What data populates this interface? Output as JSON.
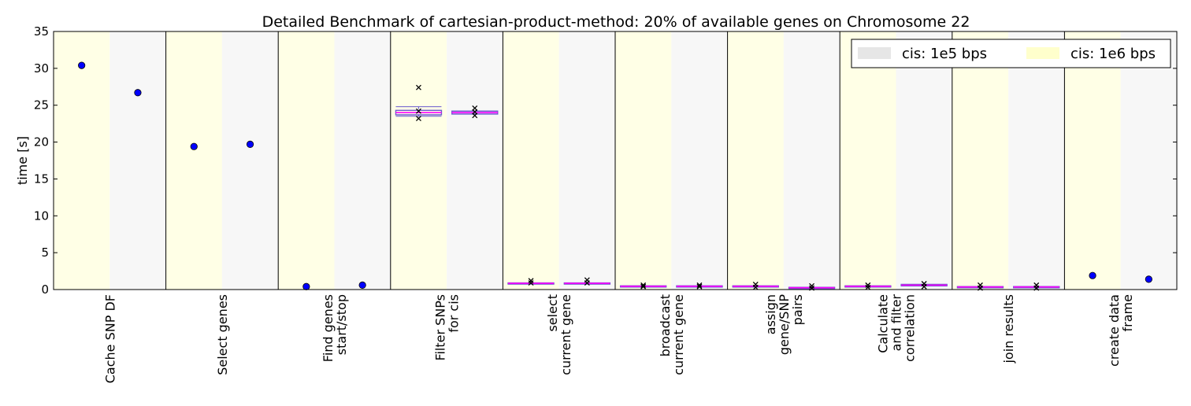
{
  "chart_data": {
    "type": "scatter",
    "title": "Detailed Benchmark of cartesian-product-method: 20% of available genes on Chromosome 22",
    "ylabel": "time [s]",
    "xlabel": "",
    "ylim": [
      0,
      35
    ],
    "yticks": [
      0,
      5,
      10,
      15,
      20,
      25,
      30,
      35
    ],
    "grid": false,
    "legend": {
      "placement": "top-right",
      "entries": [
        {
          "label": "cis: 1e5 bps",
          "color": "#e6e6e6"
        },
        {
          "label": "cis: 1e6 bps",
          "color": "#ffffcc"
        }
      ]
    },
    "colors": {
      "band_1e6": "#ffffe6",
      "band_1e5": "#f7f7f7",
      "single_point": "#0000ff",
      "box_line": "#6a5acd",
      "median": "#ff00ff",
      "outlier": "#000000"
    },
    "categories": [
      {
        "lines": [
          "Cache SNP DF"
        ],
        "kind": "point",
        "values": {
          "1e6": 30.4,
          "1e5": 26.7
        }
      },
      {
        "lines": [
          "Select genes"
        ],
        "kind": "point",
        "values": {
          "1e6": 19.4,
          "1e5": 19.7
        }
      },
      {
        "lines": [
          "Find genes",
          "start/stop"
        ],
        "kind": "point",
        "values": {
          "1e6": 0.4,
          "1e5": 0.6
        }
      },
      {
        "lines": [
          "Filter SNPs",
          "for cis"
        ],
        "kind": "box",
        "boxes": {
          "1e6": {
            "whislo": 23.5,
            "q1": 23.7,
            "med": 24.0,
            "q3": 24.3,
            "whishi": 24.8,
            "fliers": [
              27.4,
              24.2,
              23.2
            ]
          },
          "1e5": {
            "whislo": 23.8,
            "q1": 23.8,
            "med": 24.0,
            "q3": 24.2,
            "whishi": 24.2,
            "fliers": [
              24.6,
              24.1,
              23.6
            ]
          }
        }
      },
      {
        "lines": [
          "select",
          "current gene"
        ],
        "kind": "box",
        "boxes": {
          "1e6": {
            "whislo": 0.8,
            "q1": 0.8,
            "med": 0.85,
            "q3": 0.9,
            "whishi": 0.9,
            "fliers": [
              1.2,
              0.9
            ]
          },
          "1e5": {
            "whislo": 0.8,
            "q1": 0.8,
            "med": 0.85,
            "q3": 0.9,
            "whishi": 0.9,
            "fliers": [
              1.3,
              0.9
            ]
          }
        }
      },
      {
        "lines": [
          "broadcast",
          "current gene"
        ],
        "kind": "box",
        "boxes": {
          "1e6": {
            "whislo": 0.4,
            "q1": 0.4,
            "med": 0.45,
            "q3": 0.5,
            "whishi": 0.5,
            "fliers": [
              0.6,
              0.4
            ]
          },
          "1e5": {
            "whislo": 0.4,
            "q1": 0.4,
            "med": 0.45,
            "q3": 0.5,
            "whishi": 0.5,
            "fliers": [
              0.6,
              0.4
            ]
          }
        }
      },
      {
        "lines": [
          "assign",
          "gene/SNP",
          "pairs"
        ],
        "kind": "box",
        "boxes": {
          "1e6": {
            "whislo": 0.4,
            "q1": 0.4,
            "med": 0.45,
            "q3": 0.5,
            "whishi": 0.5,
            "fliers": [
              0.7,
              0.3
            ]
          },
          "1e5": {
            "whislo": 0.2,
            "q1": 0.2,
            "med": 0.25,
            "q3": 0.3,
            "whishi": 0.3,
            "fliers": [
              0.5,
              0.2
            ]
          }
        }
      },
      {
        "lines": [
          "Calculate",
          "and filter",
          "correlation"
        ],
        "kind": "box",
        "boxes": {
          "1e6": {
            "whislo": 0.4,
            "q1": 0.4,
            "med": 0.45,
            "q3": 0.5,
            "whishi": 0.5,
            "fliers": [
              0.6,
              0.3
            ]
          },
          "1e5": {
            "whislo": 0.5,
            "q1": 0.5,
            "med": 0.6,
            "q3": 0.7,
            "whishi": 0.7,
            "fliers": [
              0.8,
              0.4
            ]
          }
        }
      },
      {
        "lines": [
          "join results"
        ],
        "kind": "box",
        "boxes": {
          "1e6": {
            "whislo": 0.3,
            "q1": 0.3,
            "med": 0.35,
            "q3": 0.4,
            "whishi": 0.4,
            "fliers": [
              0.6,
              0.2
            ]
          },
          "1e5": {
            "whislo": 0.3,
            "q1": 0.3,
            "med": 0.35,
            "q3": 0.4,
            "whishi": 0.4,
            "fliers": [
              0.6,
              0.2
            ]
          }
        }
      },
      {
        "lines": [
          "create data",
          "frame"
        ],
        "kind": "point",
        "values": {
          "1e6": 1.9,
          "1e5": 1.4
        }
      }
    ]
  }
}
